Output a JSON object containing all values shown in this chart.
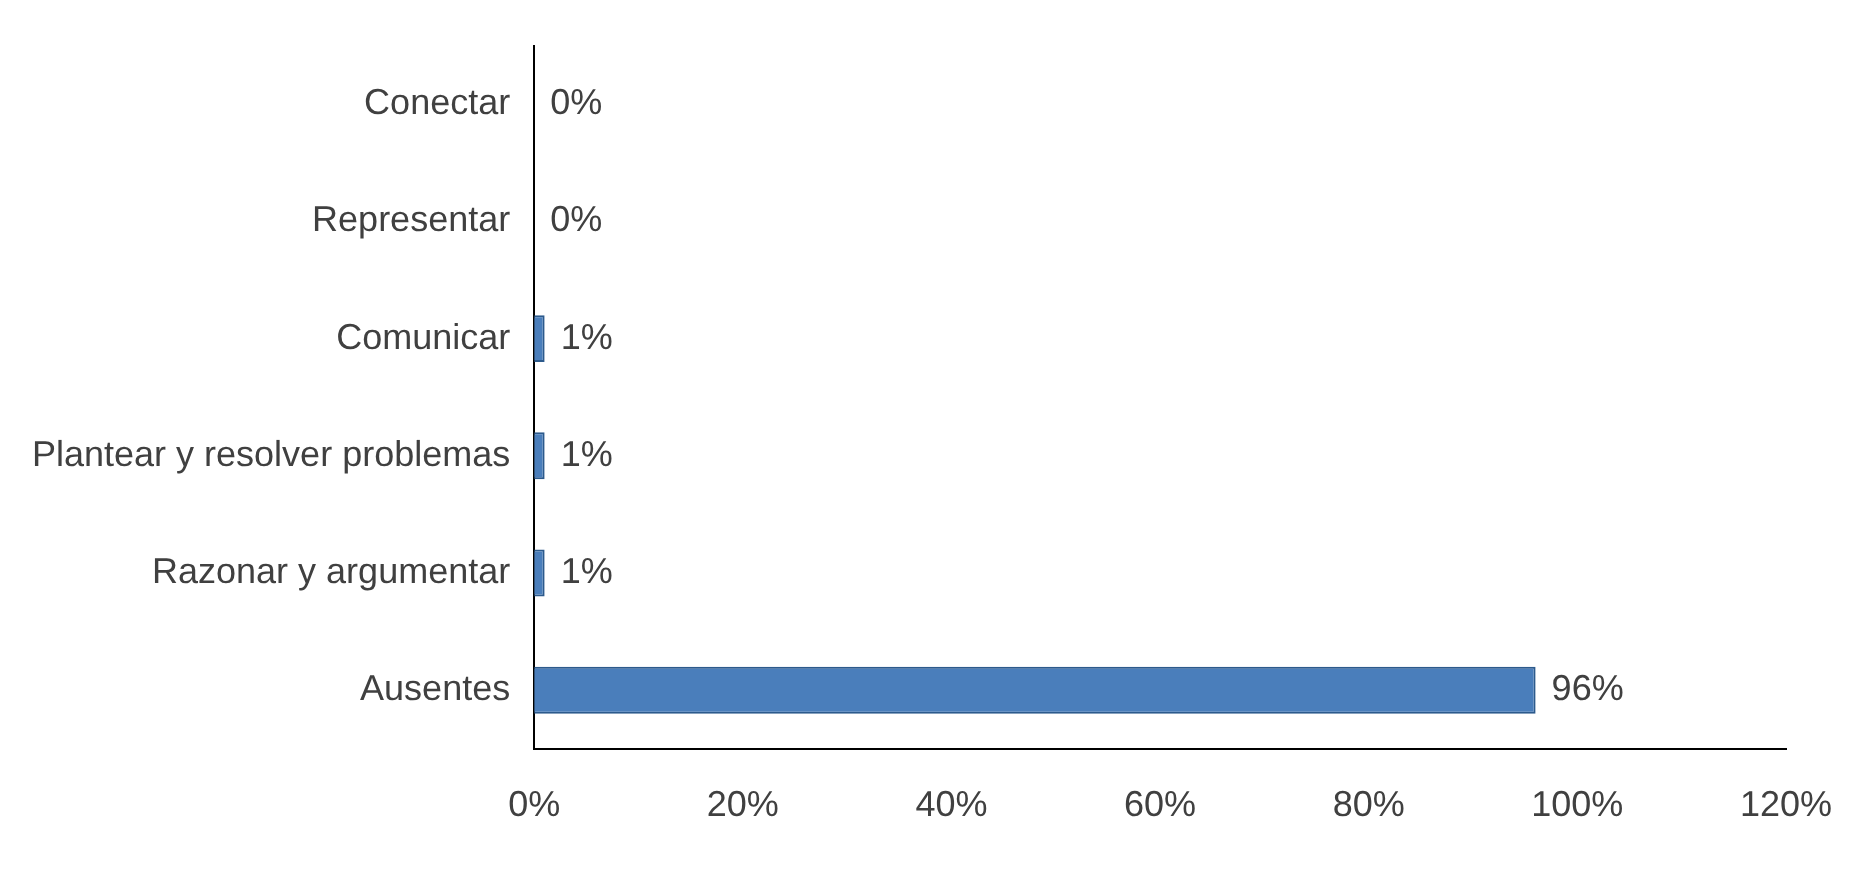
{
  "chart_data": {
    "type": "bar",
    "orientation": "horizontal",
    "categories": [
      "Conectar",
      "Representar",
      "Comunicar",
      "Plantear y resolver problemas",
      "Razonar y argumentar",
      "Ausentes"
    ],
    "values": [
      0,
      0,
      1,
      1,
      1,
      96
    ],
    "value_labels": [
      "0%",
      "0%",
      "1%",
      "1%",
      "1%",
      "96%"
    ],
    "color": "#4a7ebb",
    "xlim": [
      0,
      120
    ],
    "xticks": [
      {
        "value": 0,
        "label": "0%"
      },
      {
        "value": 20,
        "label": "20%"
      },
      {
        "value": 40,
        "label": "40%"
      },
      {
        "value": 60,
        "label": "60%"
      },
      {
        "value": 80,
        "label": "80%"
      },
      {
        "value": 100,
        "label": "100%"
      },
      {
        "value": 120,
        "label": "120%"
      }
    ],
    "grid": false,
    "legend": false
  }
}
